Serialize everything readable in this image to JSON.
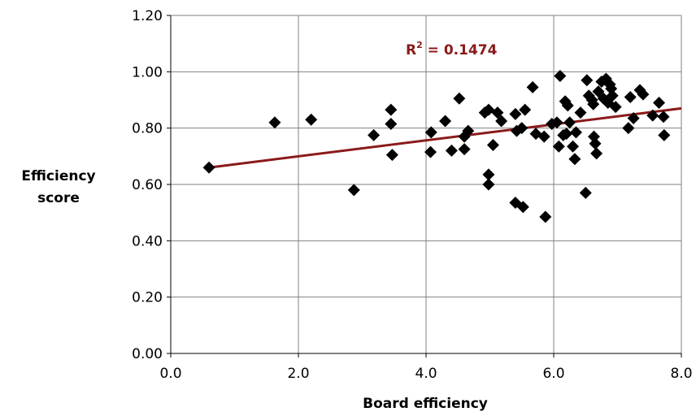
{
  "chart_data": {
    "type": "scatter",
    "xlabel": "Board efficiency",
    "ylabel_lines": [
      "Efficiency",
      "score"
    ],
    "xlim": [
      0.0,
      8.0
    ],
    "ylim": [
      0.0,
      1.2
    ],
    "x_ticks": [
      "0.0",
      "2.0",
      "4.0",
      "6.0",
      "8.0"
    ],
    "y_ticks": [
      "0.00",
      "0.20",
      "0.40",
      "0.60",
      "0.80",
      "1.00",
      "1.20"
    ],
    "grid": true,
    "legend": "none",
    "marker": "diamond",
    "marker_color": "#000000",
    "trendline": {
      "type": "linear",
      "x_range": [
        0.6,
        8.0
      ],
      "y_at_start": 0.66,
      "y_at_end": 0.87,
      "color": "#8b1a1a"
    },
    "r2_label": {
      "prefix": "R",
      "sup": "2",
      "suffix": " = 0.1474",
      "color": "#8b1a1a"
    },
    "points": [
      {
        "x": 0.6,
        "y": 0.66
      },
      {
        "x": 1.63,
        "y": 0.82
      },
      {
        "x": 2.2,
        "y": 0.83
      },
      {
        "x": 2.87,
        "y": 0.58
      },
      {
        "x": 3.18,
        "y": 0.775
      },
      {
        "x": 3.45,
        "y": 0.865
      },
      {
        "x": 3.45,
        "y": 0.815
      },
      {
        "x": 3.47,
        "y": 0.705
      },
      {
        "x": 4.08,
        "y": 0.785
      },
      {
        "x": 4.07,
        "y": 0.715
      },
      {
        "x": 4.3,
        "y": 0.825
      },
      {
        "x": 4.4,
        "y": 0.72
      },
      {
        "x": 4.52,
        "y": 0.905
      },
      {
        "x": 4.6,
        "y": 0.77
      },
      {
        "x": 4.66,
        "y": 0.79
      },
      {
        "x": 4.6,
        "y": 0.725
      },
      {
        "x": 4.92,
        "y": 0.855
      },
      {
        "x": 4.98,
        "y": 0.865
      },
      {
        "x": 4.98,
        "y": 0.635
      },
      {
        "x": 4.98,
        "y": 0.6
      },
      {
        "x": 5.05,
        "y": 0.74
      },
      {
        "x": 5.12,
        "y": 0.855
      },
      {
        "x": 5.18,
        "y": 0.825
      },
      {
        "x": 5.4,
        "y": 0.85
      },
      {
        "x": 5.42,
        "y": 0.79
      },
      {
        "x": 5.4,
        "y": 0.535
      },
      {
        "x": 5.52,
        "y": 0.52
      },
      {
        "x": 5.55,
        "y": 0.865
      },
      {
        "x": 5.5,
        "y": 0.8
      },
      {
        "x": 5.67,
        "y": 0.945
      },
      {
        "x": 5.72,
        "y": 0.78
      },
      {
        "x": 5.85,
        "y": 0.77
      },
      {
        "x": 5.87,
        "y": 0.485
      },
      {
        "x": 5.97,
        "y": 0.815
      },
      {
        "x": 6.05,
        "y": 0.82
      },
      {
        "x": 6.08,
        "y": 0.735
      },
      {
        "x": 6.1,
        "y": 0.985
      },
      {
        "x": 6.15,
        "y": 0.775
      },
      {
        "x": 6.18,
        "y": 0.895
      },
      {
        "x": 6.22,
        "y": 0.88
      },
      {
        "x": 6.2,
        "y": 0.78
      },
      {
        "x": 6.25,
        "y": 0.82
      },
      {
        "x": 6.3,
        "y": 0.735
      },
      {
        "x": 6.33,
        "y": 0.69
      },
      {
        "x": 6.35,
        "y": 0.785
      },
      {
        "x": 6.42,
        "y": 0.855
      },
      {
        "x": 6.5,
        "y": 0.57
      },
      {
        "x": 6.52,
        "y": 0.97
      },
      {
        "x": 6.55,
        "y": 0.915
      },
      {
        "x": 6.6,
        "y": 0.9
      },
      {
        "x": 6.62,
        "y": 0.885
      },
      {
        "x": 6.63,
        "y": 0.77
      },
      {
        "x": 6.65,
        "y": 0.745
      },
      {
        "x": 6.67,
        "y": 0.71
      },
      {
        "x": 6.7,
        "y": 0.93
      },
      {
        "x": 6.75,
        "y": 0.965
      },
      {
        "x": 6.78,
        "y": 0.905
      },
      {
        "x": 6.82,
        "y": 0.975
      },
      {
        "x": 6.85,
        "y": 0.89
      },
      {
        "x": 6.88,
        "y": 0.955
      },
      {
        "x": 6.9,
        "y": 0.94
      },
      {
        "x": 6.92,
        "y": 0.915
      },
      {
        "x": 6.97,
        "y": 0.875
      },
      {
        "x": 7.17,
        "y": 0.8
      },
      {
        "x": 7.2,
        "y": 0.91
      },
      {
        "x": 7.25,
        "y": 0.835
      },
      {
        "x": 7.35,
        "y": 0.935
      },
      {
        "x": 7.4,
        "y": 0.92
      },
      {
        "x": 7.55,
        "y": 0.845
      },
      {
        "x": 7.65,
        "y": 0.89
      },
      {
        "x": 7.72,
        "y": 0.84
      },
      {
        "x": 7.73,
        "y": 0.775
      }
    ]
  }
}
